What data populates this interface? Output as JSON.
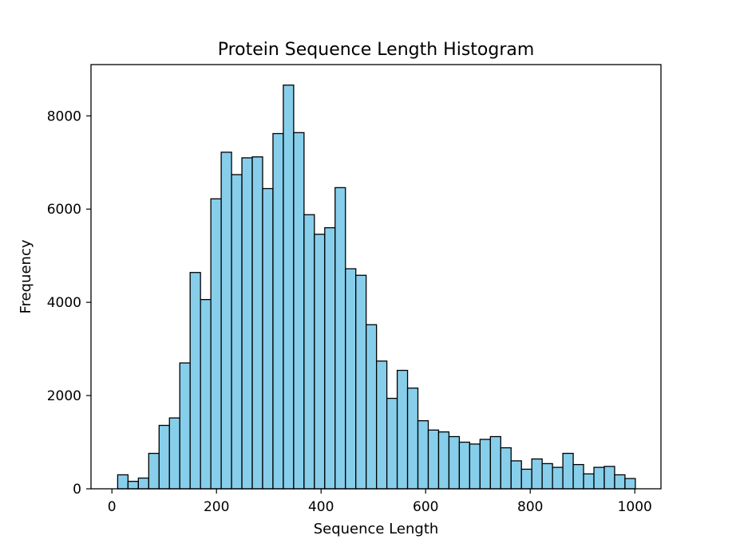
{
  "chart_data": {
    "type": "bar",
    "title": "Protein Sequence Length Histogram",
    "xlabel": "Sequence Length",
    "ylabel": "Frequency",
    "xlim": [
      -40,
      1050
    ],
    "ylim": [
      0,
      9100
    ],
    "xticks": [
      0,
      200,
      400,
      600,
      800,
      1000
    ],
    "yticks": [
      0,
      2000,
      4000,
      6000,
      8000
    ],
    "bin_width": 19.8,
    "bin_start": 11,
    "bar_color": "#87ceeb",
    "edge_color": "#000000",
    "grid": false,
    "values": [
      300,
      160,
      230,
      760,
      1360,
      1520,
      2700,
      4640,
      4060,
      6220,
      7220,
      6740,
      7100,
      7120,
      6440,
      7620,
      8660,
      7640,
      5880,
      5460,
      5600,
      6460,
      4720,
      4580,
      3520,
      2740,
      1940,
      2540,
      2160,
      1460,
      1260,
      1220,
      1120,
      1000,
      960,
      1060,
      1120,
      880,
      600,
      420,
      640,
      540,
      460,
      760,
      520,
      320,
      460,
      480,
      300,
      220
    ]
  }
}
